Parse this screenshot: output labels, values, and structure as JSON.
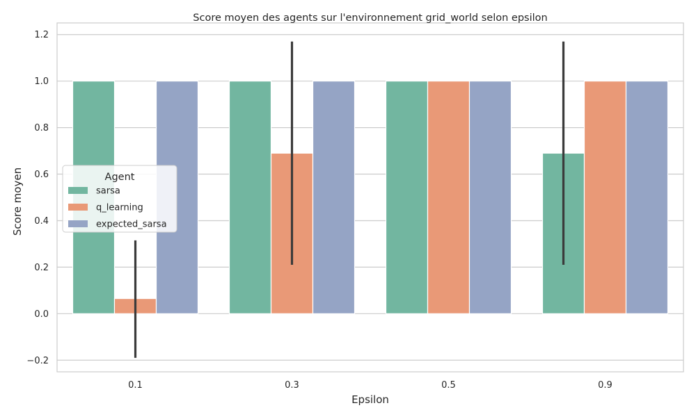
{
  "chart_data": {
    "type": "bar",
    "title": "Score moyen des agents sur l'environnement grid_world selon epsilon",
    "xlabel": "Epsilon",
    "ylabel": "Score moyen",
    "categories": [
      "0.1",
      "0.3",
      "0.5",
      "0.9"
    ],
    "ylim": [
      -0.25,
      1.25
    ],
    "yticks": [
      -0.2,
      0.0,
      0.2,
      0.4,
      0.6,
      0.8,
      1.0,
      1.2
    ],
    "ytick_labels": [
      "−0.2",
      "0.0",
      "0.2",
      "0.4",
      "0.6",
      "0.8",
      "1.0",
      "1.2"
    ],
    "grid": true,
    "legend": {
      "title": "Agent",
      "placement": "center-left"
    },
    "series": [
      {
        "name": "sarsa",
        "color": "#72b6a0",
        "values": [
          1.0,
          1.0,
          1.0,
          0.69
        ],
        "error_low": [
          null,
          null,
          null,
          0.21
        ],
        "error_high": [
          null,
          null,
          null,
          1.17
        ]
      },
      {
        "name": "q_learning",
        "color": "#e99977",
        "values": [
          0.065,
          0.69,
          1.0,
          1.0
        ],
        "error_low": [
          -0.19,
          0.21,
          null,
          null
        ],
        "error_high": [
          0.315,
          1.17,
          null,
          null
        ]
      },
      {
        "name": "expected_sarsa",
        "color": "#95a4c5",
        "values": [
          1.0,
          1.0,
          1.0,
          1.0
        ],
        "error_low": [
          null,
          null,
          null,
          null
        ],
        "error_high": [
          null,
          null,
          null,
          null
        ]
      }
    ]
  }
}
